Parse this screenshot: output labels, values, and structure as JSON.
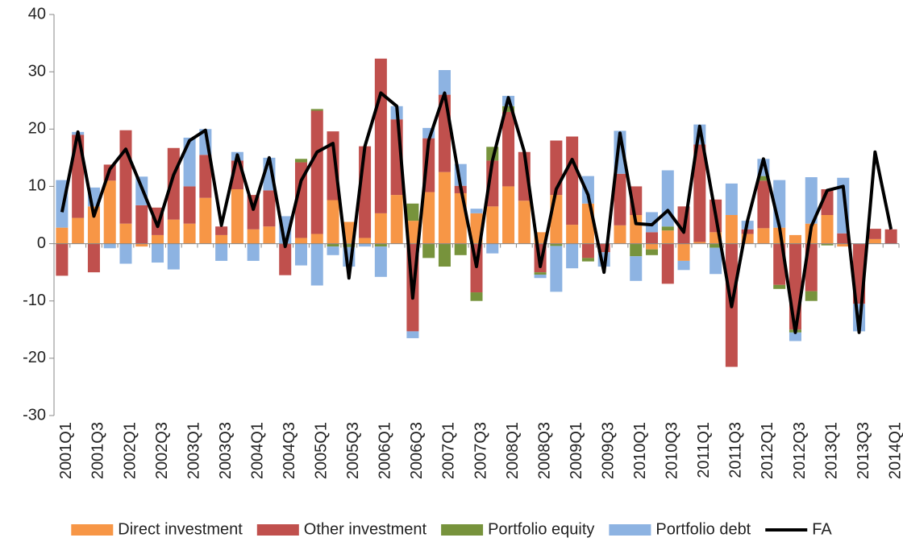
{
  "chart_data": {
    "type": "bar",
    "stacked": true,
    "categories": [
      "2001Q1",
      null,
      "2001Q3",
      null,
      "2002Q1",
      null,
      "2002Q3",
      null,
      "2003Q1",
      null,
      "2003Q3",
      null,
      "2004Q1",
      null,
      "2004Q3",
      null,
      "2005Q1",
      null,
      "2005Q3",
      null,
      "2006Q1",
      null,
      "2006Q3",
      null,
      "2007Q1",
      null,
      "2007Q3",
      null,
      "2008Q1",
      null,
      "2008Q3",
      null,
      "2009Q1",
      null,
      "2009Q3",
      null,
      "2010Q1",
      null,
      "2010Q3",
      null,
      "2011Q1",
      null,
      "2011Q3",
      null,
      "2012Q1",
      null,
      "2012Q3",
      null,
      "2013Q1",
      null,
      "2013Q3",
      null,
      "2014Q1"
    ],
    "series": [
      {
        "name": "Direct investment",
        "color": "#f79646",
        "values": [
          2.8,
          4.5,
          6.5,
          11,
          3.5,
          -0.5,
          1.5,
          4.2,
          3.5,
          8,
          1.5,
          9.5,
          2.5,
          3,
          0,
          1,
          1.7,
          7.6,
          3.8,
          1,
          5.3,
          8.5,
          4,
          9,
          12.5,
          8.8,
          5.3,
          6.5,
          10,
          7.5,
          2,
          8.5,
          3.3,
          7,
          0,
          3.2,
          5,
          -1,
          2.3,
          -3,
          0.3,
          2,
          5,
          1.7,
          2.7,
          2.8,
          1.5,
          3.5,
          5,
          -0.5,
          0,
          0.8,
          0
        ]
      },
      {
        "name": "Other investment",
        "color": "#c0504d",
        "values": [
          -5.6,
          14.5,
          -5,
          2.8,
          16.3,
          6.7,
          4.8,
          12.5,
          6.5,
          7.5,
          1.5,
          5,
          6,
          6.3,
          -5.5,
          13.2,
          21.5,
          12,
          0,
          16,
          27,
          13.2,
          -15.3,
          9.4,
          13.5,
          1.3,
          -8.5,
          8,
          13,
          8.5,
          -5,
          9.5,
          15.4,
          -2.5,
          -1.5,
          9,
          5,
          2,
          -7,
          6.5,
          17,
          5.7,
          -21.5,
          0.8,
          8.3,
          -7.2,
          -15,
          -8.3,
          4.5,
          1.8,
          -10.5,
          1.8,
          2.5
        ]
      },
      {
        "name": "Portfolio equity",
        "color": "#77933c",
        "values": [
          0,
          0,
          0,
          0,
          0,
          0,
          0,
          0,
          0,
          0,
          0,
          0,
          0,
          0,
          0,
          0.6,
          0.3,
          -0.5,
          -0.6,
          0,
          -0.5,
          0,
          3,
          -2.5,
          -4,
          -2,
          -1.5,
          2.4,
          1,
          0,
          -0.4,
          -0.4,
          0,
          -0.6,
          0,
          0,
          -2.2,
          -1,
          0.7,
          0,
          0,
          -0.7,
          0,
          0,
          0.8,
          -0.7,
          -0.5,
          -1.7,
          -0.3,
          0,
          0,
          0,
          0
        ]
      },
      {
        "name": "Portfolio debt",
        "color": "#8db3e2",
        "values": [
          8.3,
          0.5,
          3.3,
          -0.8,
          -3.5,
          5,
          -3.3,
          -4.5,
          8.5,
          4.5,
          -3,
          1.5,
          -3,
          5.7,
          4.8,
          -3.8,
          -7.3,
          -1.5,
          -3.4,
          -0.5,
          -5.3,
          2.3,
          -1.2,
          1.8,
          4.3,
          3.8,
          0.8,
          -1.7,
          1.8,
          0,
          -0.6,
          -8,
          -4.3,
          4.8,
          -2.5,
          7.5,
          -4.3,
          3.5,
          9.8,
          -1.6,
          3.5,
          -4.6,
          5.5,
          1.5,
          3,
          8.3,
          -1.5,
          8.1,
          0,
          9.7,
          -4.8,
          0,
          0
        ]
      },
      {
        "name": "FA",
        "color": "#000000",
        "type": "line",
        "values": [
          5.5,
          19.5,
          4.8,
          13,
          16.5,
          9.8,
          3,
          12,
          18,
          19.8,
          3.2,
          15.5,
          6,
          15,
          -0.5,
          11,
          16,
          17.5,
          -6,
          17,
          26.3,
          24,
          -9.5,
          18,
          26.3,
          10,
          -4,
          14.5,
          25.5,
          16,
          -4,
          9.5,
          14.7,
          8.5,
          -5,
          19.3,
          3.5,
          3.3,
          5.8,
          2,
          20.5,
          5,
          -11,
          4,
          14.8,
          3,
          -15.5,
          3,
          9.3,
          10,
          -15.5,
          16,
          2.5
        ]
      }
    ],
    "ylim": [
      -30,
      40
    ],
    "yticks": [
      -30,
      -20,
      -10,
      0,
      10,
      20,
      30,
      40
    ],
    "grid": false,
    "legend": "bottom"
  }
}
